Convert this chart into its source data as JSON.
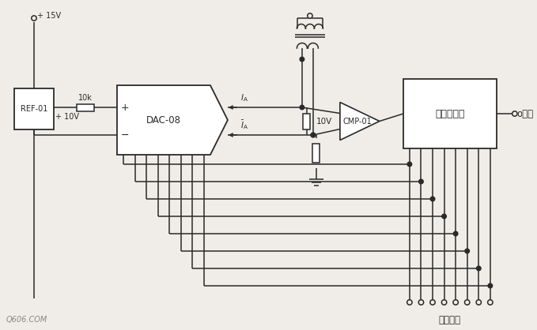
{
  "bg_color": "#f0ede8",
  "line_color": "#2a2a2a",
  "text_color": "#2a2a2a",
  "figsize": [
    6.79,
    4.18
  ],
  "dpi": 100,
  "watermark": "Q606.COM",
  "output_label": "数字输出",
  "sync_label": "o同步",
  "ref_label": "REF-01",
  "dac_label": "DAC-08",
  "cmp_label": "CMP-01",
  "counter_label": "可逆计数器",
  "resistor_label": "10k",
  "v15_label": "+ 15V",
  "v10_label": "+ 10V",
  "v10_ref_label": "10V",
  "plus_label": "+",
  "minus_label": "−"
}
